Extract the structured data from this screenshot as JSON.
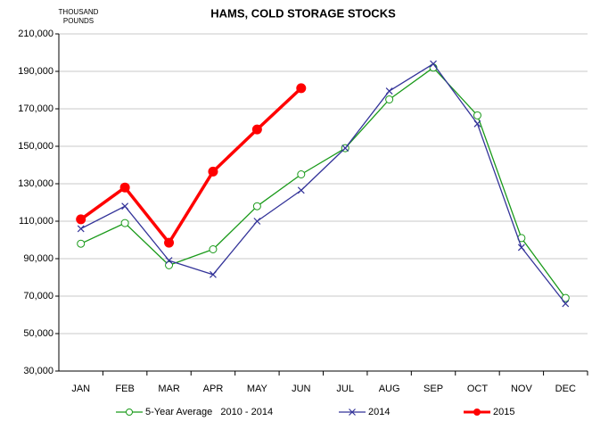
{
  "chart_data": {
    "type": "line",
    "title": "HAMS, COLD STORAGE STOCKS",
    "y_label": [
      "THOUSAND",
      "POUNDS"
    ],
    "categories": [
      "JAN",
      "FEB",
      "MAR",
      "APR",
      "MAY",
      "JUN",
      "JUL",
      "AUG",
      "SEP",
      "OCT",
      "NOV",
      "DEC"
    ],
    "series": [
      {
        "name": "5-Year Average   2010 - 2014",
        "color": "#1a9a1a",
        "marker": "open-circle",
        "values": [
          98000,
          109000,
          86500,
          95000,
          118000,
          135000,
          149000,
          175000,
          192000,
          166500,
          101000,
          69000
        ]
      },
      {
        "name": "2014",
        "color": "#333399",
        "marker": "x",
        "values": [
          106000,
          118000,
          89000,
          81500,
          110000,
          126500,
          149000,
          179500,
          194000,
          162000,
          96000,
          66000
        ]
      },
      {
        "name": "2015",
        "color": "#ff0000",
        "marker": "filled-circle",
        "values": [
          111000,
          128000,
          98500,
          136500,
          159000,
          181000,
          null,
          null,
          null,
          null,
          null,
          null
        ]
      }
    ],
    "ylim": [
      30000,
      210000
    ],
    "yticks": [
      {
        "value": 30000,
        "label": "30,000"
      },
      {
        "value": 50000,
        "label": "50,000"
      },
      {
        "value": 70000,
        "label": "70,000"
      },
      {
        "value": 90000,
        "label": "90,000"
      },
      {
        "value": 110000,
        "label": "110,000"
      },
      {
        "value": 130000,
        "label": "130,000"
      },
      {
        "value": 150000,
        "label": "150,000"
      },
      {
        "value": 170000,
        "label": "170,000"
      },
      {
        "value": 190000,
        "label": "190,000"
      },
      {
        "value": 210000,
        "label": "210,000"
      }
    ],
    "grid": true,
    "legend": "bottom"
  }
}
